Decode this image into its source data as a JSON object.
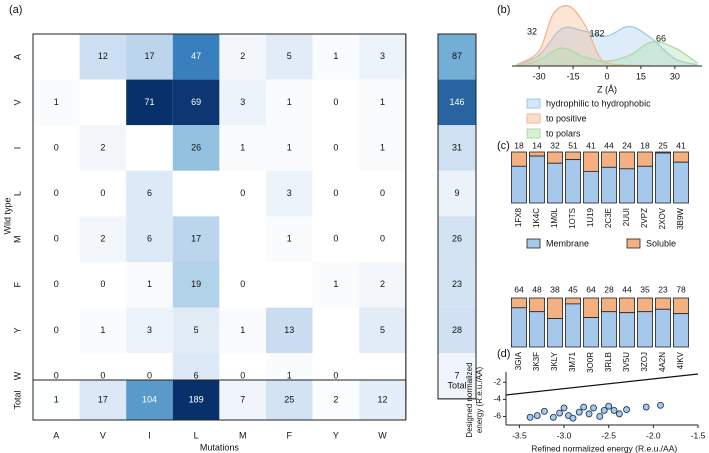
{
  "chart_data": [
    {
      "panel": "(a)",
      "type": "heatmap",
      "xlabel": "Mutations",
      "ylabel": "Wild type",
      "x_categories": [
        "A",
        "V",
        "I",
        "L",
        "M",
        "F",
        "Y",
        "W"
      ],
      "y_categories": [
        "A",
        "V",
        "I",
        "L",
        "M",
        "F",
        "Y",
        "W"
      ],
      "values": [
        [
          null,
          12,
          17,
          47,
          2,
          5,
          1,
          3
        ],
        [
          1,
          null,
          71,
          69,
          3,
          1,
          0,
          1
        ],
        [
          0,
          2,
          null,
          26,
          1,
          1,
          0,
          1
        ],
        [
          0,
          0,
          6,
          null,
          0,
          3,
          0,
          0
        ],
        [
          0,
          2,
          6,
          17,
          null,
          1,
          0,
          0
        ],
        [
          0,
          0,
          1,
          19,
          0,
          null,
          1,
          2
        ],
        [
          0,
          1,
          3,
          5,
          1,
          13,
          null,
          5
        ],
        [
          0,
          0,
          0,
          6,
          0,
          1,
          0,
          null
        ]
      ],
      "row_totals": [
        87,
        146,
        31,
        9,
        26,
        23,
        28,
        7
      ],
      "column_totals": [
        1,
        17,
        104,
        189,
        7,
        25,
        2,
        12
      ],
      "total_label": "Total"
    },
    {
      "panel": "(b)",
      "type": "area",
      "xlabel": "Z (Å)",
      "xticks": [
        -30,
        -15,
        0,
        15,
        30
      ],
      "xlim": [
        -42,
        42
      ],
      "series": [
        {
          "name": "hydrophilic to hydrophobic",
          "count_label": "182",
          "color": "#9ec9ec",
          "x": [
            -40,
            -30,
            -20,
            -10,
            0,
            10,
            20,
            30,
            40
          ],
          "y": [
            0.02,
            0.18,
            0.62,
            0.58,
            0.5,
            0.66,
            0.45,
            0.12,
            0.02
          ]
        },
        {
          "name": "to positive",
          "count_label": "32",
          "color": "#f4b58d",
          "x": [
            -40,
            -30,
            -24,
            -17,
            -10,
            -4,
            0,
            10,
            20
          ],
          "y": [
            0.02,
            0.25,
            0.85,
            1.0,
            0.7,
            0.2,
            0.05,
            0.01,
            0.0
          ]
        },
        {
          "name": "to polars",
          "count_label": "66",
          "color": "#a9dca4",
          "x": [
            -40,
            -30,
            -20,
            -10,
            0,
            10,
            20,
            30,
            40
          ],
          "y": [
            0.0,
            0.1,
            0.3,
            0.15,
            0.08,
            0.18,
            0.4,
            0.3,
            0.05
          ]
        }
      ]
    },
    {
      "panel": "(c)",
      "type": "bar",
      "legend": [
        "Membrane",
        "Soluble"
      ],
      "colors": {
        "Membrane": "#a6c8ec",
        "Soluble": "#f4b081"
      },
      "groups": [
        {
          "categories": [
            "1FX8",
            "1K4C",
            "1M0L",
            "1OTS",
            "1U19",
            "2C3E",
            "2UUI",
            "2VPZ",
            "2XOV",
            "3B9W"
          ],
          "totals": [
            18,
            14,
            32,
            51,
            41,
            44,
            24,
            18,
            25,
            41
          ],
          "membrane_fraction": [
            0.72,
            0.92,
            0.78,
            0.85,
            0.62,
            0.7,
            0.67,
            0.72,
            0.98,
            0.8
          ]
        },
        {
          "categories": [
            "3GIA",
            "3K3F",
            "3KLY",
            "3M71",
            "3O0R",
            "3RLB",
            "3V5U",
            "3ZOJ",
            "4A2N",
            "4IKV"
          ],
          "totals": [
            64,
            48,
            38,
            45,
            64,
            28,
            44,
            35,
            23,
            78
          ],
          "membrane_fraction": [
            0.8,
            0.72,
            0.58,
            0.88,
            0.6,
            0.72,
            0.7,
            0.72,
            0.77,
            0.68
          ]
        }
      ]
    },
    {
      "panel": "(d)",
      "type": "scatter",
      "xlabel": "Refined normalized energy (R.e.u./AA)",
      "ylabel": "Designed normalized\nenergy (R.e.u./AA)",
      "xlim": [
        -3.65,
        -1.5
      ],
      "ylim": [
        -7,
        -0.8
      ],
      "xticks": [
        -3.5,
        -3.0,
        -2.5,
        -2.0,
        -1.5
      ],
      "yticks": [
        -2,
        -4,
        -6
      ],
      "diagonal": true,
      "points": [
        {
          "x": -3.38,
          "y": -6.1
        },
        {
          "x": -3.3,
          "y": -5.9
        },
        {
          "x": -3.22,
          "y": -5.4
        },
        {
          "x": -3.12,
          "y": -6.1
        },
        {
          "x": -3.05,
          "y": -5.6
        },
        {
          "x": -3.0,
          "y": -5.0
        },
        {
          "x": -2.95,
          "y": -5.9
        },
        {
          "x": -2.9,
          "y": -6.2
        },
        {
          "x": -2.83,
          "y": -5.5
        },
        {
          "x": -2.78,
          "y": -4.9
        },
        {
          "x": -2.72,
          "y": -5.7
        },
        {
          "x": -2.67,
          "y": -5.0
        },
        {
          "x": -2.6,
          "y": -6.0
        },
        {
          "x": -2.55,
          "y": -5.3
        },
        {
          "x": -2.5,
          "y": -4.8
        },
        {
          "x": -2.44,
          "y": -5.3
        },
        {
          "x": -2.38,
          "y": -5.7
        },
        {
          "x": -2.3,
          "y": -5.2
        },
        {
          "x": -2.08,
          "y": -4.9
        },
        {
          "x": -1.92,
          "y": -4.7
        }
      ]
    }
  ]
}
